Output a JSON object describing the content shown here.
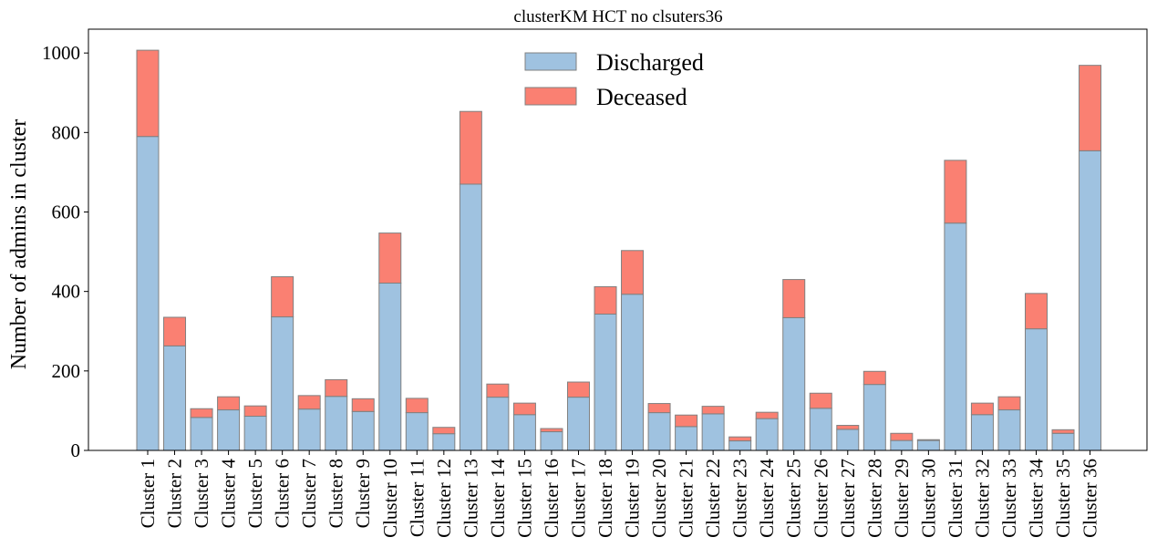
{
  "chart_data": {
    "type": "bar",
    "stacked": true,
    "title": "clusterKM HCT no clsuters36",
    "xlabel": "",
    "ylabel": "Number of admins in cluster",
    "ylim": [
      0,
      1060
    ],
    "yticks": [
      0,
      200,
      400,
      600,
      800,
      1000
    ],
    "legend_position": "top-center",
    "grid": false,
    "categories": [
      "Cluster 1",
      "Cluster 2",
      "Cluster 3",
      "Cluster 4",
      "Cluster 5",
      "Cluster 6",
      "Cluster 7",
      "Cluster 8",
      "Cluster 9",
      "Cluster 10",
      "Cluster 11",
      "Cluster 12",
      "Cluster 13",
      "Cluster 14",
      "Cluster 15",
      "Cluster 16",
      "Cluster 17",
      "Cluster 18",
      "Cluster 19",
      "Cluster 20",
      "Cluster 21",
      "Cluster 22",
      "Cluster 23",
      "Cluster 24",
      "Cluster 25",
      "Cluster 26",
      "Cluster 27",
      "Cluster 28",
      "Cluster 29",
      "Cluster 30",
      "Cluster 31",
      "Cluster 32",
      "Cluster 33",
      "Cluster 34",
      "Cluster 35",
      "Cluster 36"
    ],
    "series": [
      {
        "name": "Discharged",
        "color": "#9fc2e0",
        "values": [
          790,
          263,
          83,
          102,
          86,
          336,
          104,
          136,
          98,
          421,
          95,
          42,
          670,
          134,
          90,
          47,
          134,
          343,
          393,
          95,
          60,
          92,
          24,
          80,
          334,
          106,
          53,
          166,
          25,
          25,
          572,
          90,
          102,
          306,
          43,
          754
        ]
      },
      {
        "name": "Deceased",
        "color": "#fa8072",
        "values": [
          217,
          72,
          22,
          33,
          26,
          101,
          34,
          42,
          32,
          126,
          36,
          16,
          183,
          33,
          29,
          8,
          38,
          69,
          110,
          23,
          29,
          19,
          10,
          16,
          96,
          38,
          10,
          33,
          18,
          2,
          158,
          29,
          33,
          89,
          9,
          215
        ]
      }
    ]
  }
}
